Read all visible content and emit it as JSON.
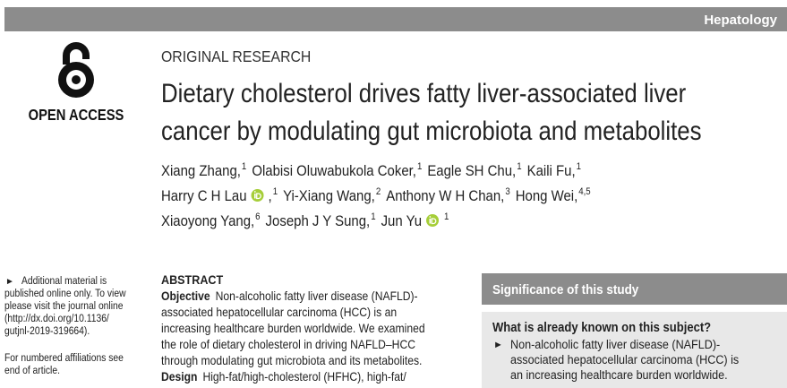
{
  "journal_section": "Hepatology",
  "open_access": "OPEN ACCESS",
  "article_type": "ORIGINAL RESEARCH",
  "title_lines": [
    "Dietary cholesterol drives fatty liver-associated liver",
    "cancer by modulating gut microbiota and metabolites"
  ],
  "author_lines": [
    [
      {
        "name": "Xiang Zhang,",
        "affil": "1"
      },
      {
        "name": "Olabisi Oluwabukola Coker,",
        "affil": "1"
      },
      {
        "name": "Eagle SH Chu,",
        "affil": "1"
      },
      {
        "name": "Kaili Fu,",
        "affil": "1"
      }
    ],
    [
      {
        "name": "Harry C H Lau",
        "orcid": true,
        "after": ",",
        "affil": "1"
      },
      {
        "name": "Yi-Xiang Wang,",
        "affil": "2"
      },
      {
        "name": "Anthony W H Chan,",
        "affil": "3"
      },
      {
        "name": "Hong Wei,",
        "affil": "4,5"
      }
    ],
    [
      {
        "name": "Xiaoyong Yang,",
        "affil": "6"
      },
      {
        "name": "Joseph J Y Sung,",
        "affil": "1"
      },
      {
        "name": "Jun Yu",
        "orcid": true,
        "affil": "1"
      }
    ]
  ],
  "sidebar": {
    "bullet": "►",
    "note_lines": [
      "Additional material is",
      "published online only. To view",
      "please visit the journal online",
      "(http://dx.doi.org/10.1136/",
      "gutjnl-2019-319664)."
    ],
    "affiliation_lines": [
      "For numbered affiliations see",
      "end of article."
    ]
  },
  "abstract": {
    "heading": "ABSTRACT",
    "sections": [
      {
        "label": "Objective",
        "lines": [
          "Non-alcoholic fatty liver disease (NAFLD)-",
          "associated hepatocellular carcinoma (HCC) is an",
          "increasing healthcare burden worldwide. We examined",
          "the role of dietary cholesterol in driving NAFLD–HCC",
          "through modulating gut microbiota and its metabolites."
        ]
      },
      {
        "label": "Design",
        "lines": [
          "High-fat/high-cholesterol (HFHC), high-fat/"
        ]
      }
    ]
  },
  "significance": {
    "heading": "Significance of this study",
    "subheading": "What is already known on this subject?",
    "bullet": "►",
    "lines": [
      "Non-alcoholic fatty liver disease (NAFLD)-",
      "associated hepatocellular carcinoma (HCC) is",
      "an increasing healthcare burden worldwide."
    ]
  }
}
